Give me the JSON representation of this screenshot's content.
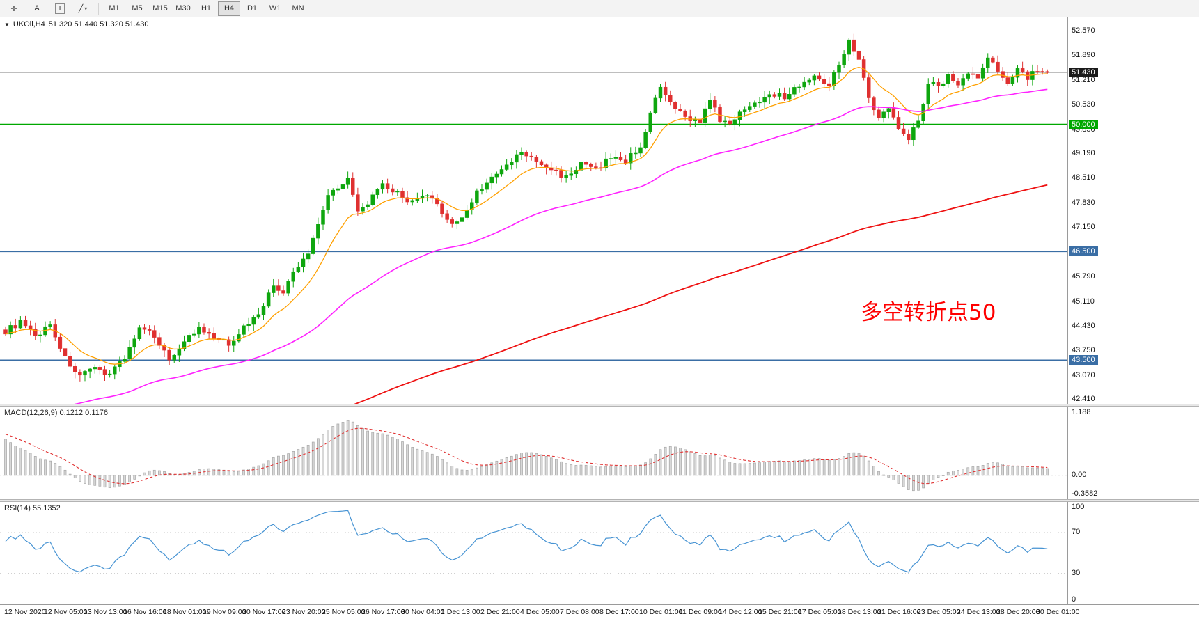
{
  "toolbar": {
    "tools": [
      {
        "name": "crosshair",
        "glyph": "✛"
      },
      {
        "name": "text",
        "glyph": "A"
      },
      {
        "name": "label",
        "glyph": "T"
      },
      {
        "name": "draw-lines",
        "glyph": "╱"
      }
    ],
    "timeframes": [
      "M1",
      "M5",
      "M15",
      "M30",
      "H1",
      "H4",
      "D1",
      "W1",
      "MN"
    ],
    "active_timeframe": "H4"
  },
  "chart": {
    "dropdown_glyph": "▼",
    "symbol": "UKOil,H4",
    "ohlc_text": "51.320 51.440 51.320 51.430",
    "annotation": {
      "text": "多空转折点50",
      "color": "#FF0000"
    },
    "price_axis": {
      "ticks": [
        "52.570",
        "51.890",
        "51.210",
        "50.530",
        "49.850",
        "49.190",
        "48.510",
        "47.830",
        "47.150",
        "45.790",
        "45.110",
        "44.430",
        "43.750",
        "43.070",
        "42.410"
      ],
      "current_price": "51.430"
    }
  },
  "macd": {
    "label": "MACD(12,26,9) 0.1212 0.1176",
    "values": {
      "macd": 0.1212,
      "signal": 0.1176
    },
    "axis_labels": [
      {
        "text": "1.188",
        "value": 1.188
      },
      {
        "text": "0.00",
        "value": 0
      },
      {
        "text": "-0.3582",
        "value": -0.3582
      }
    ]
  },
  "rsi": {
    "label": "RSI(14) 55.1352",
    "value": 55.1352,
    "axis_labels": [
      {
        "text": "100",
        "value": 100
      },
      {
        "text": "70",
        "value": 70
      },
      {
        "text": "30",
        "value": 30
      },
      {
        "text": "0",
        "value": 0
      }
    ]
  },
  "time_axis": {
    "labels": [
      "12 Nov 2020",
      "12 Nov 05:00",
      "13 Nov 13:00",
      "16 Nov 16:00",
      "18 Nov 01:00",
      "19 Nov 09:00",
      "20 Nov 17:00",
      "23 Nov 20:00",
      "25 Nov 05:00",
      "26 Nov 17:00",
      "30 Nov 04:00",
      "1 Dec 13:00",
      "2 Dec 21:00",
      "4 Dec 05:00",
      "7 Dec 08:00",
      "8 Dec 17:00",
      "10 Dec 01:00",
      "11 Dec 09:00",
      "14 Dec 12:00",
      "15 Dec 21:00",
      "17 Dec 05:00",
      "18 Dec 13:00",
      "21 Dec 16:00",
      "23 Dec 05:00",
      "24 Dec 13:00",
      "28 Dec 20:00",
      "30 Dec 01:00"
    ]
  },
  "chart_data": {
    "type": "candlestick+indicators",
    "instrument": "UKOil",
    "timeframe": "H4",
    "bars": 211,
    "values_estimated": true,
    "price_range": [
      42.3,
      52.95
    ],
    "close_anchors": [
      [
        0,
        44.3
      ],
      [
        3,
        44.55
      ],
      [
        6,
        44.15
      ],
      [
        9,
        44.5
      ],
      [
        12,
        43.55
      ],
      [
        15,
        43.05
      ],
      [
        18,
        43.25
      ],
      [
        21,
        43.15
      ],
      [
        24,
        43.6
      ],
      [
        27,
        44.35
      ],
      [
        30,
        44.2
      ],
      [
        33,
        43.5
      ],
      [
        36,
        44.05
      ],
      [
        39,
        44.35
      ],
      [
        42,
        44.1
      ],
      [
        45,
        43.95
      ],
      [
        48,
        44.4
      ],
      [
        51,
        44.8
      ],
      [
        54,
        45.55
      ],
      [
        56,
        45.35
      ],
      [
        58,
        45.9
      ],
      [
        61,
        46.45
      ],
      [
        63,
        47.3
      ],
      [
        65,
        48.05
      ],
      [
        67,
        48.3
      ],
      [
        69,
        48.5
      ],
      [
        71,
        47.55
      ],
      [
        73,
        47.85
      ],
      [
        76,
        48.3
      ],
      [
        79,
        48.1
      ],
      [
        82,
        47.85
      ],
      [
        85,
        48.05
      ],
      [
        88,
        47.6
      ],
      [
        90,
        47.25
      ],
      [
        92,
        47.4
      ],
      [
        95,
        48.15
      ],
      [
        98,
        48.5
      ],
      [
        101,
        48.85
      ],
      [
        104,
        49.25
      ],
      [
        107,
        48.95
      ],
      [
        110,
        48.75
      ],
      [
        113,
        48.55
      ],
      [
        116,
        48.9
      ],
      [
        119,
        48.75
      ],
      [
        122,
        49.1
      ],
      [
        125,
        49.0
      ],
      [
        128,
        49.4
      ],
      [
        130,
        50.3
      ],
      [
        132,
        51.0
      ],
      [
        134,
        50.55
      ],
      [
        137,
        50.2
      ],
      [
        140,
        50.1
      ],
      [
        142,
        50.65
      ],
      [
        144,
        50.15
      ],
      [
        146,
        49.95
      ],
      [
        148,
        50.4
      ],
      [
        151,
        50.55
      ],
      [
        154,
        50.9
      ],
      [
        157,
        50.75
      ],
      [
        160,
        51.1
      ],
      [
        163,
        51.3
      ],
      [
        166,
        51.15
      ],
      [
        168,
        51.6
      ],
      [
        170,
        52.38
      ],
      [
        172,
        51.8
      ],
      [
        174,
        50.7
      ],
      [
        176,
        50.15
      ],
      [
        178,
        50.45
      ],
      [
        180,
        49.95
      ],
      [
        182,
        49.65
      ],
      [
        184,
        50.1
      ],
      [
        186,
        51.15
      ],
      [
        188,
        51.05
      ],
      [
        190,
        51.35
      ],
      [
        192,
        51.1
      ],
      [
        194,
        51.45
      ],
      [
        196,
        51.25
      ],
      [
        198,
        51.85
      ],
      [
        200,
        51.45
      ],
      [
        202,
        51.2
      ],
      [
        204,
        51.55
      ],
      [
        206,
        51.3
      ],
      [
        208,
        51.5
      ],
      [
        210,
        51.43
      ]
    ],
    "levels": [
      {
        "price": "51.430",
        "line_color": "#a8a8a8",
        "badge_color": "#1a1a1a",
        "width": 1
      },
      {
        "price": "50.000",
        "line_color": "#00A800",
        "badge_color": "#00A800",
        "width": 2
      },
      {
        "price": "46.500",
        "line_color": "#3A6EA5",
        "badge_color": "#3A6EA5",
        "width": 2
      },
      {
        "price": "43.500",
        "line_color": "#3A6EA5",
        "badge_color": "#3A6EA5",
        "width": 2
      }
    ],
    "moving_averages": [
      {
        "name": "fast",
        "color": "#FFA000"
      },
      {
        "name": "medium",
        "color": "#FF22FF"
      },
      {
        "name": "slow",
        "color": "#EE1111"
      }
    ],
    "macd": {
      "params": [
        12,
        26,
        9
      ],
      "range": [
        -0.45,
        1.3
      ]
    },
    "rsi": {
      "period": 14,
      "range": [
        0,
        100
      ],
      "levels": [
        70,
        30
      ]
    },
    "style": {
      "bull": "#0EA60E",
      "bear": "#DF3030",
      "macd_bar_fill": "#d8d8d8",
      "macd_bar_stroke": "#a9a9a9",
      "macd_signal": "#E03030",
      "rsi_line": "#4693D3"
    }
  }
}
